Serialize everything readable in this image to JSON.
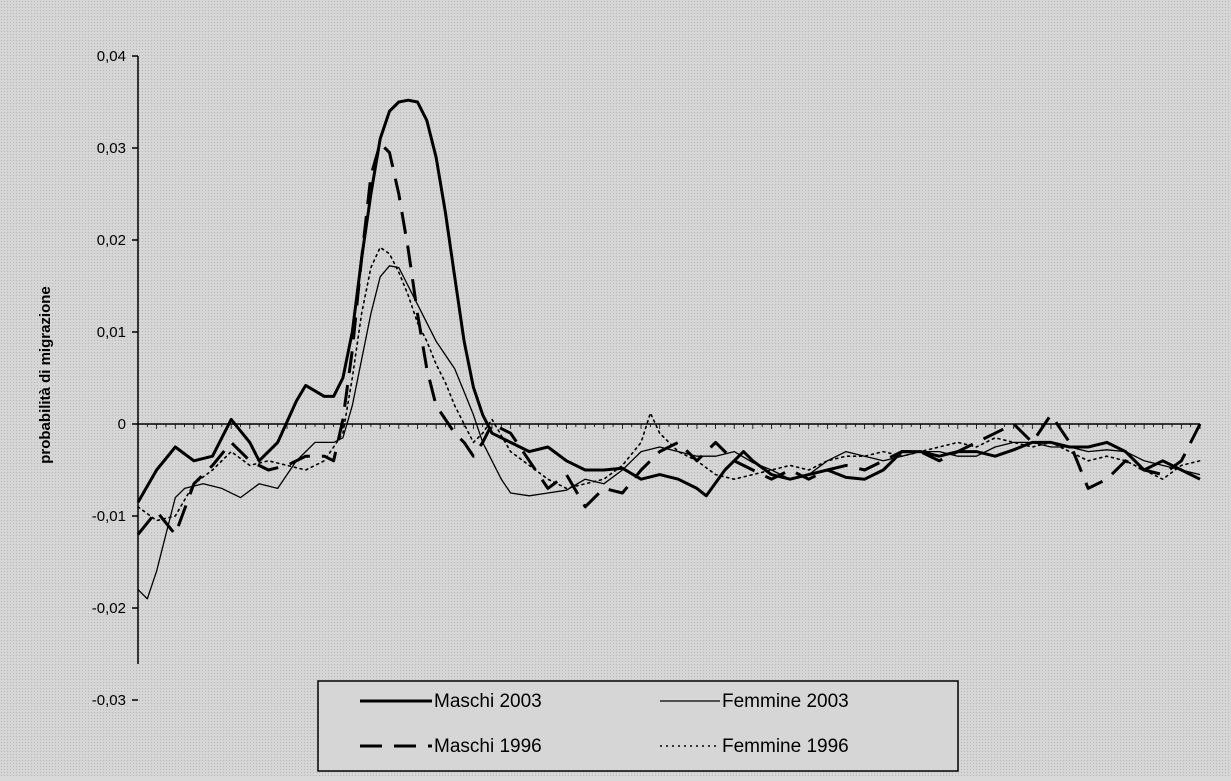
{
  "chart_data": {
    "type": "line",
    "ylabel": "probabilità di migrazione",
    "ylim": [
      -0.03,
      0.04
    ],
    "yticks": [
      {
        "value": 0.04,
        "label": "0,04"
      },
      {
        "value": 0.03,
        "label": "0,03"
      },
      {
        "value": 0.02,
        "label": "0,02"
      },
      {
        "value": 0.01,
        "label": "0,01"
      },
      {
        "value": 0,
        "label": "0"
      },
      {
        "value": -0.01,
        "label": "-0,01"
      },
      {
        "value": -0.02,
        "label": "-0,02"
      },
      {
        "value": -0.03,
        "label": "-0,03"
      }
    ],
    "xlim": [
      0,
      114
    ],
    "grid": false,
    "legend_position": "bottom-center",
    "series": [
      {
        "name": "Maschi 2003",
        "style": "solid-thick",
        "color": "#000000",
        "points": [
          [
            0,
            -0.0085
          ],
          [
            2,
            -0.005
          ],
          [
            4,
            -0.0025
          ],
          [
            6,
            -0.004
          ],
          [
            8,
            -0.0035
          ],
          [
            10,
            0.0005
          ],
          [
            12,
            -0.002
          ],
          [
            13,
            -0.004
          ],
          [
            15,
            -0.002
          ],
          [
            17,
            0.0025
          ],
          [
            18,
            0.0042
          ],
          [
            20,
            0.003
          ],
          [
            21,
            0.003
          ],
          [
            22,
            0.005
          ],
          [
            23,
            0.01
          ],
          [
            24,
            0.018
          ],
          [
            25,
            0.025
          ],
          [
            26,
            0.031
          ],
          [
            27,
            0.034
          ],
          [
            28,
            0.035
          ],
          [
            29,
            0.0352
          ],
          [
            30,
            0.035
          ],
          [
            31,
            0.033
          ],
          [
            32,
            0.029
          ],
          [
            33,
            0.023
          ],
          [
            34,
            0.016
          ],
          [
            35,
            0.009
          ],
          [
            36,
            0.004
          ],
          [
            37,
            0.001
          ],
          [
            38,
            -0.001
          ],
          [
            40,
            -0.002
          ],
          [
            42,
            -0.003
          ],
          [
            44,
            -0.0025
          ],
          [
            46,
            -0.004
          ],
          [
            48,
            -0.005
          ],
          [
            50,
            -0.005
          ],
          [
            52,
            -0.0048
          ],
          [
            54,
            -0.006
          ],
          [
            56,
            -0.0055
          ],
          [
            58,
            -0.006
          ],
          [
            60,
            -0.007
          ],
          [
            61,
            -0.0078
          ],
          [
            63,
            -0.005
          ],
          [
            65,
            -0.003
          ],
          [
            66,
            -0.004
          ],
          [
            68,
            -0.0055
          ],
          [
            70,
            -0.006
          ],
          [
            72,
            -0.0055
          ],
          [
            74,
            -0.005
          ],
          [
            76,
            -0.0058
          ],
          [
            78,
            -0.006
          ],
          [
            80,
            -0.005
          ],
          [
            82,
            -0.003
          ],
          [
            84,
            -0.003
          ],
          [
            86,
            -0.0035
          ],
          [
            88,
            -0.003
          ],
          [
            90,
            -0.003
          ],
          [
            92,
            -0.0035
          ],
          [
            94,
            -0.0028
          ],
          [
            96,
            -0.002
          ],
          [
            98,
            -0.002
          ],
          [
            100,
            -0.0025
          ],
          [
            102,
            -0.0025
          ],
          [
            104,
            -0.002
          ],
          [
            106,
            -0.003
          ],
          [
            108,
            -0.005
          ],
          [
            110,
            -0.004
          ],
          [
            112,
            -0.005
          ],
          [
            114,
            -0.006
          ]
        ]
      },
      {
        "name": "Femmine 2003",
        "style": "solid-thin",
        "color": "#000000",
        "points": [
          [
            0,
            -0.018
          ],
          [
            1,
            -0.019
          ],
          [
            2,
            -0.016
          ],
          [
            3,
            -0.012
          ],
          [
            4,
            -0.008
          ],
          [
            5,
            -0.007
          ],
          [
            7,
            -0.0065
          ],
          [
            9,
            -0.007
          ],
          [
            11,
            -0.008
          ],
          [
            13,
            -0.0065
          ],
          [
            15,
            -0.007
          ],
          [
            17,
            -0.004
          ],
          [
            19,
            -0.002
          ],
          [
            21,
            -0.002
          ],
          [
            22,
            -0.0015
          ],
          [
            23,
            0.002
          ],
          [
            24,
            0.007
          ],
          [
            25,
            0.012
          ],
          [
            26,
            0.016
          ],
          [
            27,
            0.0172
          ],
          [
            28,
            0.017
          ],
          [
            29,
            0.015
          ],
          [
            30,
            0.013
          ],
          [
            31,
            0.011
          ],
          [
            32,
            0.009
          ],
          [
            33,
            0.0075
          ],
          [
            34,
            0.006
          ],
          [
            35,
            0.0035
          ],
          [
            36,
            0.001
          ],
          [
            37,
            -0.002
          ],
          [
            38,
            -0.004
          ],
          [
            39,
            -0.006
          ],
          [
            40,
            -0.0075
          ],
          [
            42,
            -0.0078
          ],
          [
            44,
            -0.0075
          ],
          [
            46,
            -0.0072
          ],
          [
            48,
            -0.006
          ],
          [
            50,
            -0.0065
          ],
          [
            52,
            -0.005
          ],
          [
            54,
            -0.003
          ],
          [
            56,
            -0.0025
          ],
          [
            58,
            -0.003
          ],
          [
            60,
            -0.0035
          ],
          [
            62,
            -0.0035
          ],
          [
            64,
            -0.003
          ],
          [
            66,
            -0.0042
          ],
          [
            68,
            -0.005
          ],
          [
            70,
            -0.006
          ],
          [
            72,
            -0.0055
          ],
          [
            74,
            -0.004
          ],
          [
            76,
            -0.003
          ],
          [
            78,
            -0.0035
          ],
          [
            80,
            -0.004
          ],
          [
            82,
            -0.0035
          ],
          [
            84,
            -0.003
          ],
          [
            86,
            -0.003
          ],
          [
            88,
            -0.0035
          ],
          [
            90,
            -0.0035
          ],
          [
            92,
            -0.0025
          ],
          [
            94,
            -0.002
          ],
          [
            96,
            -0.002
          ],
          [
            98,
            -0.0025
          ],
          [
            100,
            -0.0025
          ],
          [
            102,
            -0.003
          ],
          [
            104,
            -0.0028
          ],
          [
            106,
            -0.003
          ],
          [
            108,
            -0.004
          ],
          [
            110,
            -0.0045
          ],
          [
            112,
            -0.005
          ],
          [
            114,
            -0.0055
          ]
        ]
      },
      {
        "name": "Maschi 1996",
        "style": "dashed",
        "color": "#000000",
        "points": [
          [
            0,
            -0.012
          ],
          [
            2,
            -0.0095
          ],
          [
            4,
            -0.012
          ],
          [
            6,
            -0.0065
          ],
          [
            8,
            -0.0045
          ],
          [
            10,
            -0.002
          ],
          [
            12,
            -0.004
          ],
          [
            14,
            -0.005
          ],
          [
            16,
            -0.0045
          ],
          [
            18,
            -0.0035
          ],
          [
            20,
            -0.0035
          ],
          [
            21,
            -0.004
          ],
          [
            22,
            0.0005
          ],
          [
            23,
            0.008
          ],
          [
            24,
            0.018
          ],
          [
            25,
            0.027
          ],
          [
            26,
            0.0305
          ],
          [
            27,
            0.0295
          ],
          [
            28,
            0.025
          ],
          [
            29,
            0.019
          ],
          [
            30,
            0.012
          ],
          [
            31,
            0.006
          ],
          [
            32,
            0.002
          ],
          [
            33,
            0.0005
          ],
          [
            34,
            -0.001
          ],
          [
            35,
            -0.002
          ],
          [
            36,
            -0.0035
          ],
          [
            37,
            -0.002
          ],
          [
            38,
            0.0
          ],
          [
            40,
            -0.001
          ],
          [
            42,
            -0.004
          ],
          [
            44,
            -0.007
          ],
          [
            46,
            -0.0055
          ],
          [
            48,
            -0.009
          ],
          [
            50,
            -0.007
          ],
          [
            52,
            -0.0075
          ],
          [
            54,
            -0.005
          ],
          [
            56,
            -0.003
          ],
          [
            58,
            -0.002
          ],
          [
            60,
            -0.004
          ],
          [
            62,
            -0.002
          ],
          [
            64,
            -0.004
          ],
          [
            66,
            -0.005
          ],
          [
            68,
            -0.006
          ],
          [
            70,
            -0.005
          ],
          [
            72,
            -0.006
          ],
          [
            74,
            -0.005
          ],
          [
            76,
            -0.0045
          ],
          [
            78,
            -0.005
          ],
          [
            80,
            -0.004
          ],
          [
            82,
            -0.003
          ],
          [
            84,
            -0.003
          ],
          [
            86,
            -0.004
          ],
          [
            88,
            -0.003
          ],
          [
            90,
            -0.002
          ],
          [
            92,
            -0.001
          ],
          [
            94,
            0.0
          ],
          [
            96,
            -0.002
          ],
          [
            98,
            0.001
          ],
          [
            100,
            -0.002
          ],
          [
            102,
            -0.007
          ],
          [
            104,
            -0.006
          ],
          [
            106,
            -0.004
          ],
          [
            108,
            -0.005
          ],
          [
            110,
            -0.0055
          ],
          [
            112,
            -0.004
          ],
          [
            114,
            0.0
          ]
        ]
      },
      {
        "name": "Femmine 1996",
        "style": "dotted",
        "color": "#000000",
        "points": [
          [
            0,
            -0.009
          ],
          [
            2,
            -0.0105
          ],
          [
            4,
            -0.01
          ],
          [
            6,
            -0.0065
          ],
          [
            8,
            -0.005
          ],
          [
            10,
            -0.003
          ],
          [
            12,
            -0.0045
          ],
          [
            14,
            -0.004
          ],
          [
            16,
            -0.0045
          ],
          [
            18,
            -0.005
          ],
          [
            20,
            -0.004
          ],
          [
            22,
            -0.001
          ],
          [
            23,
            0.005
          ],
          [
            24,
            0.012
          ],
          [
            25,
            0.017
          ],
          [
            26,
            0.0192
          ],
          [
            27,
            0.0185
          ],
          [
            28,
            0.0165
          ],
          [
            29,
            0.014
          ],
          [
            30,
            0.011
          ],
          [
            31,
            0.009
          ],
          [
            32,
            0.0065
          ],
          [
            33,
            0.0045
          ],
          [
            34,
            0.002
          ],
          [
            35,
            0.0
          ],
          [
            36,
            -0.002
          ],
          [
            37,
            -0.001
          ],
          [
            38,
            0.0005
          ],
          [
            40,
            -0.003
          ],
          [
            42,
            -0.0045
          ],
          [
            44,
            -0.006
          ],
          [
            46,
            -0.007
          ],
          [
            48,
            -0.0065
          ],
          [
            50,
            -0.006
          ],
          [
            52,
            -0.0045
          ],
          [
            54,
            -0.002
          ],
          [
            55,
            0.0012
          ],
          [
            56,
            -0.001
          ],
          [
            58,
            -0.003
          ],
          [
            60,
            -0.004
          ],
          [
            62,
            -0.0055
          ],
          [
            64,
            -0.006
          ],
          [
            66,
            -0.0055
          ],
          [
            68,
            -0.005
          ],
          [
            70,
            -0.0045
          ],
          [
            72,
            -0.005
          ],
          [
            74,
            -0.004
          ],
          [
            76,
            -0.0035
          ],
          [
            78,
            -0.0035
          ],
          [
            80,
            -0.003
          ],
          [
            82,
            -0.0035
          ],
          [
            84,
            -0.003
          ],
          [
            86,
            -0.0025
          ],
          [
            88,
            -0.002
          ],
          [
            90,
            -0.0025
          ],
          [
            92,
            -0.0015
          ],
          [
            94,
            -0.002
          ],
          [
            96,
            -0.0025
          ],
          [
            98,
            -0.002
          ],
          [
            100,
            -0.003
          ],
          [
            102,
            -0.004
          ],
          [
            104,
            -0.0035
          ],
          [
            106,
            -0.004
          ],
          [
            108,
            -0.005
          ],
          [
            110,
            -0.006
          ],
          [
            112,
            -0.0045
          ],
          [
            114,
            -0.004
          ]
        ]
      }
    ],
    "legend": [
      {
        "label": "Maschi 2003",
        "style": "solid-thick"
      },
      {
        "label": "Femmine 2003",
        "style": "solid-thin"
      },
      {
        "label": "Maschi 1996",
        "style": "dashed"
      },
      {
        "label": "Femmine 1996",
        "style": "dotted"
      }
    ]
  }
}
